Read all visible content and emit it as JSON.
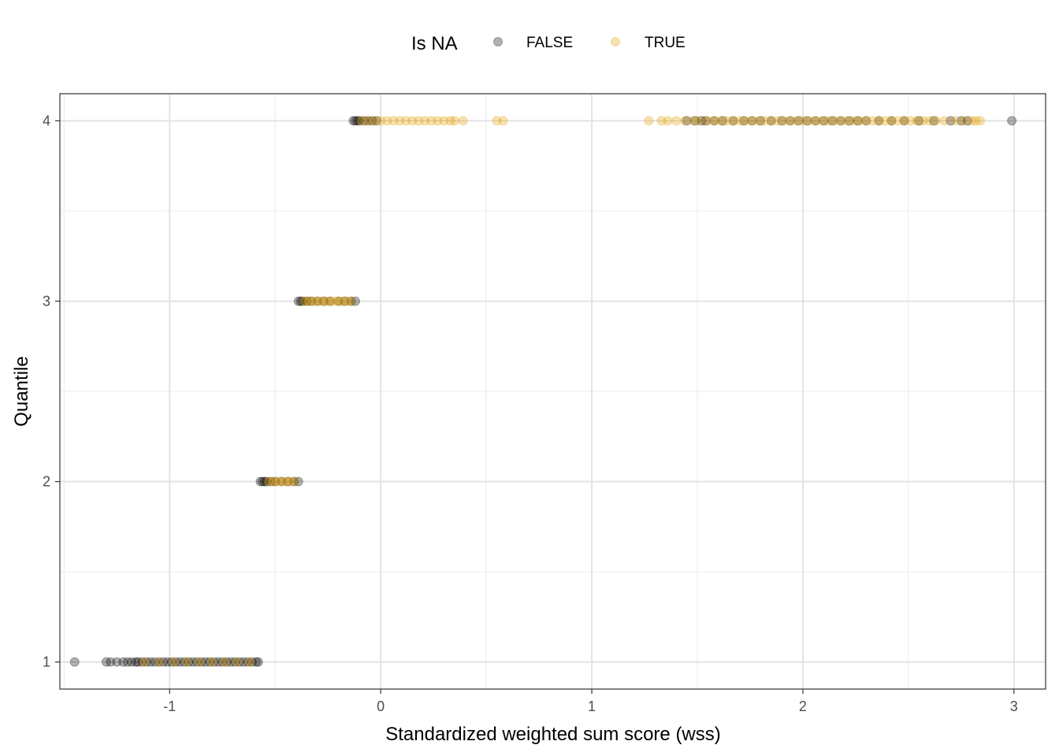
{
  "chart_data": {
    "type": "scatter",
    "title": "",
    "xlabel": "Standardized weighted sum score (wss)",
    "ylabel": "Quantile",
    "xlim": [
      -1.52,
      3.15
    ],
    "ylim": [
      0.85,
      4.15
    ],
    "x_ticks": [
      -1,
      0,
      1,
      2,
      3
    ],
    "x_tick_labels": [
      "-1",
      "0",
      "1",
      "2",
      "3"
    ],
    "y_ticks": [
      1,
      2,
      3,
      4
    ],
    "y_tick_labels": [
      "1",
      "2",
      "3",
      "4"
    ],
    "grid": true,
    "legend": {
      "title": "Is NA",
      "position": "top",
      "entries": [
        {
          "label": "FALSE",
          "color": "#000000"
        },
        {
          "label": "TRUE",
          "color": "#E69F00"
        }
      ]
    },
    "point_alpha": 0.3,
    "series": [
      {
        "name": "FALSE",
        "color": "#000000",
        "points": [
          [
            -1.45,
            1
          ],
          [
            -1.3,
            1
          ],
          [
            -1.28,
            1
          ],
          [
            -1.25,
            1
          ],
          [
            -1.22,
            1
          ],
          [
            -1.2,
            1
          ],
          [
            -1.18,
            1
          ],
          [
            -1.16,
            1
          ],
          [
            -1.15,
            1
          ],
          [
            -1.13,
            1
          ],
          [
            -1.11,
            1
          ],
          [
            -1.09,
            1
          ],
          [
            -1.07,
            1
          ],
          [
            -1.05,
            1
          ],
          [
            -1.03,
            1
          ],
          [
            -1.01,
            1
          ],
          [
            -0.99,
            1
          ],
          [
            -0.97,
            1
          ],
          [
            -0.95,
            1
          ],
          [
            -0.93,
            1
          ],
          [
            -0.91,
            1
          ],
          [
            -0.89,
            1
          ],
          [
            -0.87,
            1
          ],
          [
            -0.85,
            1
          ],
          [
            -0.83,
            1
          ],
          [
            -0.81,
            1
          ],
          [
            -0.79,
            1
          ],
          [
            -0.77,
            1
          ],
          [
            -0.75,
            1
          ],
          [
            -0.73,
            1
          ],
          [
            -0.71,
            1
          ],
          [
            -0.69,
            1
          ],
          [
            -0.67,
            1
          ],
          [
            -0.65,
            1
          ],
          [
            -0.63,
            1
          ],
          [
            -0.61,
            1
          ],
          [
            -0.59,
            1
          ],
          [
            -0.58,
            1
          ],
          [
            -0.57,
            2
          ],
          [
            -0.56,
            2
          ],
          [
            -0.55,
            2
          ],
          [
            -0.54,
            2
          ],
          [
            -0.52,
            2
          ],
          [
            -0.5,
            2
          ],
          [
            -0.47,
            2
          ],
          [
            -0.44,
            2
          ],
          [
            -0.41,
            2
          ],
          [
            -0.39,
            2
          ],
          [
            -0.39,
            3
          ],
          [
            -0.38,
            3
          ],
          [
            -0.37,
            3
          ],
          [
            -0.35,
            3
          ],
          [
            -0.33,
            3
          ],
          [
            -0.3,
            3
          ],
          [
            -0.27,
            3
          ],
          [
            -0.24,
            3
          ],
          [
            -0.2,
            3
          ],
          [
            -0.17,
            3
          ],
          [
            -0.14,
            3
          ],
          [
            -0.12,
            3
          ],
          [
            -0.13,
            4
          ],
          [
            -0.12,
            4
          ],
          [
            -0.11,
            4
          ],
          [
            -0.1,
            4
          ],
          [
            -0.08,
            4
          ],
          [
            -0.06,
            4
          ],
          [
            -0.04,
            4
          ],
          [
            -0.02,
            4
          ],
          [
            1.45,
            4
          ],
          [
            1.49,
            4
          ],
          [
            1.52,
            4
          ],
          [
            1.54,
            4
          ],
          [
            1.58,
            4
          ],
          [
            1.62,
            4
          ],
          [
            1.67,
            4
          ],
          [
            1.72,
            4
          ],
          [
            1.76,
            4
          ],
          [
            1.8,
            4
          ],
          [
            1.85,
            4
          ],
          [
            1.9,
            4
          ],
          [
            1.94,
            4
          ],
          [
            1.98,
            4
          ],
          [
            2.02,
            4
          ],
          [
            2.06,
            4
          ],
          [
            2.1,
            4
          ],
          [
            2.14,
            4
          ],
          [
            2.18,
            4
          ],
          [
            2.22,
            4
          ],
          [
            2.26,
            4
          ],
          [
            2.3,
            4
          ],
          [
            2.36,
            4
          ],
          [
            2.42,
            4
          ],
          [
            2.48,
            4
          ],
          [
            2.55,
            4
          ],
          [
            2.62,
            4
          ],
          [
            2.7,
            4
          ],
          [
            2.75,
            4
          ],
          [
            2.78,
            4
          ],
          [
            2.99,
            4
          ]
        ]
      },
      {
        "name": "TRUE",
        "color": "#E69F00",
        "points": [
          [
            -1.12,
            1
          ],
          [
            -1.05,
            1
          ],
          [
            -0.98,
            1
          ],
          [
            -0.92,
            1
          ],
          [
            -0.86,
            1
          ],
          [
            -0.8,
            1
          ],
          [
            -0.74,
            1
          ],
          [
            -0.68,
            1
          ],
          [
            -0.62,
            1
          ],
          [
            -0.53,
            2
          ],
          [
            -0.51,
            2
          ],
          [
            -0.49,
            2
          ],
          [
            -0.47,
            2
          ],
          [
            -0.45,
            2
          ],
          [
            -0.43,
            2
          ],
          [
            -0.41,
            2
          ],
          [
            -0.36,
            3
          ],
          [
            -0.34,
            3
          ],
          [
            -0.32,
            3
          ],
          [
            -0.3,
            3
          ],
          [
            -0.28,
            3
          ],
          [
            -0.26,
            3
          ],
          [
            -0.24,
            3
          ],
          [
            -0.22,
            3
          ],
          [
            -0.2,
            3
          ],
          [
            -0.18,
            3
          ],
          [
            -0.16,
            3
          ],
          [
            -0.14,
            3
          ],
          [
            -0.09,
            4
          ],
          [
            -0.06,
            4
          ],
          [
            -0.03,
            4
          ],
          [
            0.0,
            4
          ],
          [
            0.03,
            4
          ],
          [
            0.06,
            4
          ],
          [
            0.09,
            4
          ],
          [
            0.12,
            4
          ],
          [
            0.15,
            4
          ],
          [
            0.18,
            4
          ],
          [
            0.21,
            4
          ],
          [
            0.24,
            4
          ],
          [
            0.27,
            4
          ],
          [
            0.3,
            4
          ],
          [
            0.33,
            4
          ],
          [
            0.35,
            4
          ],
          [
            0.39,
            4
          ],
          [
            0.55,
            4
          ],
          [
            0.58,
            4
          ],
          [
            1.27,
            4
          ],
          [
            1.33,
            4
          ],
          [
            1.36,
            4
          ],
          [
            1.4,
            4
          ],
          [
            1.44,
            4
          ],
          [
            1.48,
            4
          ],
          [
            1.51,
            4
          ],
          [
            1.55,
            4
          ],
          [
            1.58,
            4
          ],
          [
            1.61,
            4
          ],
          [
            1.64,
            4
          ],
          [
            1.67,
            4
          ],
          [
            1.7,
            4
          ],
          [
            1.73,
            4
          ],
          [
            1.76,
            4
          ],
          [
            1.79,
            4
          ],
          [
            1.82,
            4
          ],
          [
            1.85,
            4
          ],
          [
            1.88,
            4
          ],
          [
            1.91,
            4
          ],
          [
            1.94,
            4
          ],
          [
            1.97,
            4
          ],
          [
            2.0,
            4
          ],
          [
            2.03,
            4
          ],
          [
            2.06,
            4
          ],
          [
            2.09,
            4
          ],
          [
            2.12,
            4
          ],
          [
            2.15,
            4
          ],
          [
            2.18,
            4
          ],
          [
            2.21,
            4
          ],
          [
            2.24,
            4
          ],
          [
            2.27,
            4
          ],
          [
            2.3,
            4
          ],
          [
            2.33,
            4
          ],
          [
            2.36,
            4
          ],
          [
            2.39,
            4
          ],
          [
            2.42,
            4
          ],
          [
            2.45,
            4
          ],
          [
            2.48,
            4
          ],
          [
            2.51,
            4
          ],
          [
            2.54,
            4
          ],
          [
            2.57,
            4
          ],
          [
            2.6,
            4
          ],
          [
            2.63,
            4
          ],
          [
            2.67,
            4
          ],
          [
            2.72,
            4
          ],
          [
            2.76,
            4
          ],
          [
            2.8,
            4
          ],
          [
            2.82,
            4
          ],
          [
            2.84,
            4
          ]
        ]
      }
    ]
  }
}
